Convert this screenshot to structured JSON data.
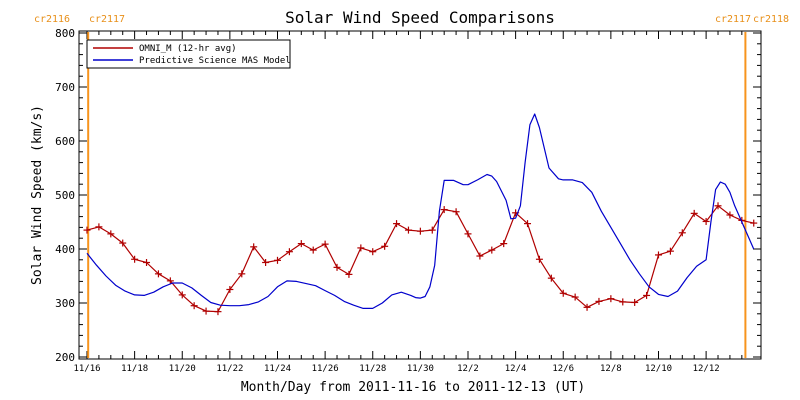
{
  "chart_data": {
    "type": "line",
    "title": "Solar Wind Speed Comparisons",
    "xlabel": "Month/Day from 2011-11-16 to 2011-12-13 (UT)",
    "ylabel": "Solar Wind Speed (km/s)",
    "xlim_days": [
      0,
      28.2
    ],
    "ylim": [
      200,
      800
    ],
    "yticks": [
      200,
      300,
      400,
      500,
      600,
      700,
      800
    ],
    "xtick_days": [
      0,
      2,
      4,
      6,
      8,
      10,
      12,
      14,
      16,
      18,
      20,
      22,
      24,
      26
    ],
    "xtick_labels": [
      "11/16",
      "11/18",
      "11/20",
      "11/22",
      "11/24",
      "11/26",
      "11/28",
      "11/30",
      "12/2",
      "12/4",
      "12/6",
      "12/8",
      "12/10",
      "12/12"
    ],
    "grid": false,
    "legend": {
      "placement": "top-left"
    },
    "carrington": {
      "left": {
        "day": 0.05,
        "labels": [
          "cr2116",
          "cr2117"
        ]
      },
      "right": {
        "day": 27.65,
        "labels": [
          "cr2117",
          "cr2118"
        ]
      },
      "color": "#f7941d"
    },
    "series": [
      {
        "name": "OMNI_M (12-hr avg)",
        "color": "#b00000",
        "marker": "plus",
        "x": [
          0,
          0.5,
          1,
          1.5,
          2,
          2.5,
          3,
          3.5,
          4,
          4.5,
          5,
          5.5,
          6,
          6.5,
          7,
          7.5,
          8,
          8.5,
          9,
          9.5,
          10,
          10.5,
          11,
          11.5,
          12,
          12.5,
          13,
          13.5,
          14,
          14.5,
          15,
          15.5,
          16,
          16.5,
          17,
          17.5,
          18,
          18.5,
          19,
          19.5,
          20,
          20.5,
          21,
          21.5,
          22,
          22.5,
          23,
          23.5,
          24,
          24.5,
          25,
          25.5,
          26,
          26.5,
          27,
          27.5,
          28
        ],
        "values": [
          435,
          441,
          428,
          411,
          381,
          375,
          354,
          341,
          315,
          295,
          285,
          284,
          325,
          354,
          404,
          375,
          379,
          395,
          410,
          398,
          409,
          366,
          353,
          402,
          395,
          405,
          447,
          435,
          433,
          435,
          473,
          469,
          428,
          387,
          398,
          410,
          467,
          447,
          381,
          346,
          318,
          311,
          292,
          303,
          308,
          302,
          301,
          314,
          389,
          396,
          430,
          466,
          451,
          480,
          463,
          453,
          448
        ]
      },
      {
        "name": "Predictive Science MAS Model",
        "color": "#0000cc",
        "marker": "none",
        "x": [
          0,
          0.4,
          0.8,
          1.2,
          1.6,
          2,
          2.4,
          2.8,
          3.2,
          3.6,
          4,
          4.4,
          4.8,
          5.2,
          5.6,
          6,
          6.4,
          6.8,
          7.2,
          7.6,
          8,
          8.4,
          8.8,
          9.2,
          9.6,
          10,
          10.4,
          10.8,
          11.2,
          11.6,
          12,
          12.4,
          12.8,
          13.2,
          13.6,
          13.8,
          14,
          14.2,
          14.4,
          14.6,
          14.8,
          15,
          15.4,
          15.8,
          16,
          16.4,
          16.8,
          17,
          17.2,
          17.6,
          17.8,
          18,
          18.2,
          18.4,
          18.6,
          18.8,
          19,
          19.4,
          19.8,
          20,
          20.4,
          20.8,
          21.2,
          21.6,
          22,
          22.4,
          22.8,
          23.2,
          23.6,
          24,
          24.4,
          24.8,
          25.2,
          25.6,
          26,
          26.2,
          26.4,
          26.6,
          26.8,
          27,
          27.2,
          27.4,
          27.6,
          27.8,
          28
        ],
        "values": [
          392,
          370,
          350,
          333,
          322,
          315,
          314,
          320,
          330,
          337,
          337,
          328,
          314,
          301,
          296,
          295,
          295,
          297,
          302,
          312,
          330,
          341,
          340,
          336,
          332,
          323,
          314,
          303,
          296,
          290,
          290,
          300,
          315,
          320,
          314,
          310,
          309,
          312,
          330,
          370,
          470,
          527,
          527,
          519,
          519,
          528,
          538,
          535,
          525,
          490,
          456,
          457,
          480,
          560,
          630,
          650,
          625,
          550,
          530,
          528,
          528,
          523,
          505,
          470,
          440,
          410,
          380,
          354,
          330,
          316,
          312,
          322,
          347,
          368,
          380,
          450,
          510,
          524,
          520,
          505,
          480,
          460,
          440,
          420,
          400
        ]
      }
    ]
  }
}
